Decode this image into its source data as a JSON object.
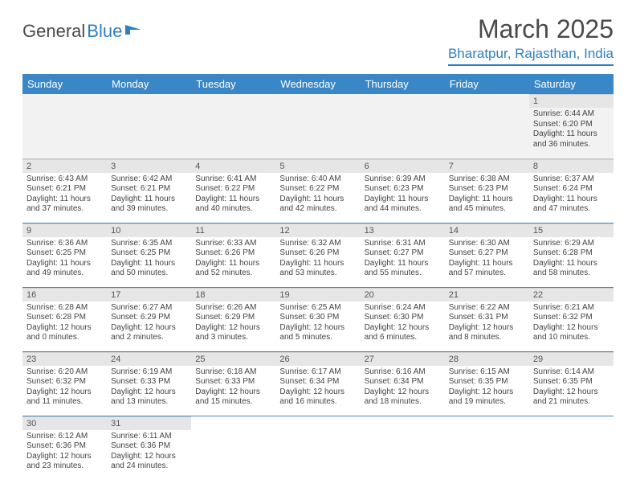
{
  "logo": {
    "text1": "General",
    "text2": "Blue"
  },
  "title": "March 2025",
  "location": "Bharatpur, Rajasthan, India",
  "colors": {
    "header_bg": "#3a87c7",
    "header_text": "#ffffff",
    "accent": "#2f7fc1",
    "daybar_bg": "#e6e6e6",
    "body_text": "#444",
    "border": "#3a87c7"
  },
  "weekdays": [
    "Sunday",
    "Monday",
    "Tuesday",
    "Wednesday",
    "Thursday",
    "Friday",
    "Saturday"
  ],
  "weeks": [
    [
      null,
      null,
      null,
      null,
      null,
      null,
      {
        "n": "1",
        "sr": "Sunrise: 6:44 AM",
        "ss": "Sunset: 6:20 PM",
        "dl": "Daylight: 11 hours and 36 minutes."
      }
    ],
    [
      {
        "n": "2",
        "sr": "Sunrise: 6:43 AM",
        "ss": "Sunset: 6:21 PM",
        "dl": "Daylight: 11 hours and 37 minutes."
      },
      {
        "n": "3",
        "sr": "Sunrise: 6:42 AM",
        "ss": "Sunset: 6:21 PM",
        "dl": "Daylight: 11 hours and 39 minutes."
      },
      {
        "n": "4",
        "sr": "Sunrise: 6:41 AM",
        "ss": "Sunset: 6:22 PM",
        "dl": "Daylight: 11 hours and 40 minutes."
      },
      {
        "n": "5",
        "sr": "Sunrise: 6:40 AM",
        "ss": "Sunset: 6:22 PM",
        "dl": "Daylight: 11 hours and 42 minutes."
      },
      {
        "n": "6",
        "sr": "Sunrise: 6:39 AM",
        "ss": "Sunset: 6:23 PM",
        "dl": "Daylight: 11 hours and 44 minutes."
      },
      {
        "n": "7",
        "sr": "Sunrise: 6:38 AM",
        "ss": "Sunset: 6:23 PM",
        "dl": "Daylight: 11 hours and 45 minutes."
      },
      {
        "n": "8",
        "sr": "Sunrise: 6:37 AM",
        "ss": "Sunset: 6:24 PM",
        "dl": "Daylight: 11 hours and 47 minutes."
      }
    ],
    [
      {
        "n": "9",
        "sr": "Sunrise: 6:36 AM",
        "ss": "Sunset: 6:25 PM",
        "dl": "Daylight: 11 hours and 49 minutes."
      },
      {
        "n": "10",
        "sr": "Sunrise: 6:35 AM",
        "ss": "Sunset: 6:25 PM",
        "dl": "Daylight: 11 hours and 50 minutes."
      },
      {
        "n": "11",
        "sr": "Sunrise: 6:33 AM",
        "ss": "Sunset: 6:26 PM",
        "dl": "Daylight: 11 hours and 52 minutes."
      },
      {
        "n": "12",
        "sr": "Sunrise: 6:32 AM",
        "ss": "Sunset: 6:26 PM",
        "dl": "Daylight: 11 hours and 53 minutes."
      },
      {
        "n": "13",
        "sr": "Sunrise: 6:31 AM",
        "ss": "Sunset: 6:27 PM",
        "dl": "Daylight: 11 hours and 55 minutes."
      },
      {
        "n": "14",
        "sr": "Sunrise: 6:30 AM",
        "ss": "Sunset: 6:27 PM",
        "dl": "Daylight: 11 hours and 57 minutes."
      },
      {
        "n": "15",
        "sr": "Sunrise: 6:29 AM",
        "ss": "Sunset: 6:28 PM",
        "dl": "Daylight: 11 hours and 58 minutes."
      }
    ],
    [
      {
        "n": "16",
        "sr": "Sunrise: 6:28 AM",
        "ss": "Sunset: 6:28 PM",
        "dl": "Daylight: 12 hours and 0 minutes."
      },
      {
        "n": "17",
        "sr": "Sunrise: 6:27 AM",
        "ss": "Sunset: 6:29 PM",
        "dl": "Daylight: 12 hours and 2 minutes."
      },
      {
        "n": "18",
        "sr": "Sunrise: 6:26 AM",
        "ss": "Sunset: 6:29 PM",
        "dl": "Daylight: 12 hours and 3 minutes."
      },
      {
        "n": "19",
        "sr": "Sunrise: 6:25 AM",
        "ss": "Sunset: 6:30 PM",
        "dl": "Daylight: 12 hours and 5 minutes."
      },
      {
        "n": "20",
        "sr": "Sunrise: 6:24 AM",
        "ss": "Sunset: 6:30 PM",
        "dl": "Daylight: 12 hours and 6 minutes."
      },
      {
        "n": "21",
        "sr": "Sunrise: 6:22 AM",
        "ss": "Sunset: 6:31 PM",
        "dl": "Daylight: 12 hours and 8 minutes."
      },
      {
        "n": "22",
        "sr": "Sunrise: 6:21 AM",
        "ss": "Sunset: 6:32 PM",
        "dl": "Daylight: 12 hours and 10 minutes."
      }
    ],
    [
      {
        "n": "23",
        "sr": "Sunrise: 6:20 AM",
        "ss": "Sunset: 6:32 PM",
        "dl": "Daylight: 12 hours and 11 minutes."
      },
      {
        "n": "24",
        "sr": "Sunrise: 6:19 AM",
        "ss": "Sunset: 6:33 PM",
        "dl": "Daylight: 12 hours and 13 minutes."
      },
      {
        "n": "25",
        "sr": "Sunrise: 6:18 AM",
        "ss": "Sunset: 6:33 PM",
        "dl": "Daylight: 12 hours and 15 minutes."
      },
      {
        "n": "26",
        "sr": "Sunrise: 6:17 AM",
        "ss": "Sunset: 6:34 PM",
        "dl": "Daylight: 12 hours and 16 minutes."
      },
      {
        "n": "27",
        "sr": "Sunrise: 6:16 AM",
        "ss": "Sunset: 6:34 PM",
        "dl": "Daylight: 12 hours and 18 minutes."
      },
      {
        "n": "28",
        "sr": "Sunrise: 6:15 AM",
        "ss": "Sunset: 6:35 PM",
        "dl": "Daylight: 12 hours and 19 minutes."
      },
      {
        "n": "29",
        "sr": "Sunrise: 6:14 AM",
        "ss": "Sunset: 6:35 PM",
        "dl": "Daylight: 12 hours and 21 minutes."
      }
    ],
    [
      {
        "n": "30",
        "sr": "Sunrise: 6:12 AM",
        "ss": "Sunset: 6:36 PM",
        "dl": "Daylight: 12 hours and 23 minutes."
      },
      {
        "n": "31",
        "sr": "Sunrise: 6:11 AM",
        "ss": "Sunset: 6:36 PM",
        "dl": "Daylight: 12 hours and 24 minutes."
      },
      null,
      null,
      null,
      null,
      null
    ]
  ]
}
